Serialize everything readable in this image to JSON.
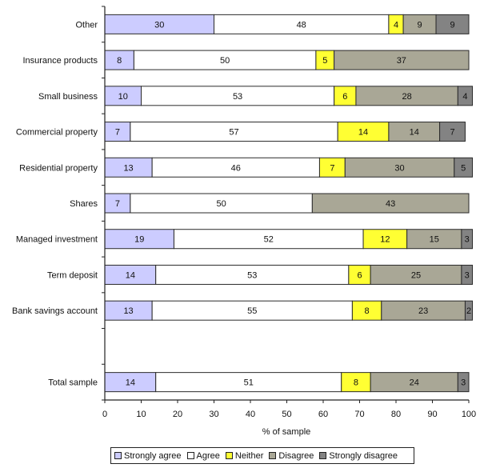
{
  "chart_data": {
    "type": "bar",
    "orientation": "horizontal",
    "stacked": true,
    "title": "",
    "xlabel": "% of sample",
    "ylabel": "",
    "xlim": [
      0,
      100
    ],
    "xticks": [
      0,
      10,
      20,
      30,
      40,
      50,
      60,
      70,
      80,
      90,
      100
    ],
    "grid": false,
    "legend_position": "bottom",
    "categories": [
      "Other",
      "Insurance products",
      "Small business",
      "Commercial property",
      "Residential property",
      "Shares",
      "Managed investment",
      "Term deposit",
      "Bank savings account",
      "",
      "Total sample"
    ],
    "series": [
      {
        "name": "Strongly agree",
        "color": "#CCCCFF",
        "values": [
          30,
          8,
          10,
          7,
          13,
          7,
          19,
          14,
          13,
          null,
          14
        ]
      },
      {
        "name": "Agree",
        "color": "#FFFFFF",
        "values": [
          48,
          50,
          53,
          57,
          46,
          50,
          52,
          53,
          55,
          null,
          51
        ]
      },
      {
        "name": "Neither",
        "color": "#FFFF33",
        "values": [
          4,
          5,
          6,
          14,
          7,
          0,
          12,
          6,
          8,
          null,
          8
        ]
      },
      {
        "name": "Disagree",
        "color": "#A9A796",
        "values": [
          9,
          37,
          28,
          14,
          30,
          43,
          15,
          25,
          23,
          null,
          24
        ]
      },
      {
        "name": "Strongly disagree",
        "color": "#838383",
        "values": [
          9,
          0,
          4,
          7,
          5,
          0,
          3,
          3,
          2,
          null,
          3
        ]
      }
    ]
  }
}
